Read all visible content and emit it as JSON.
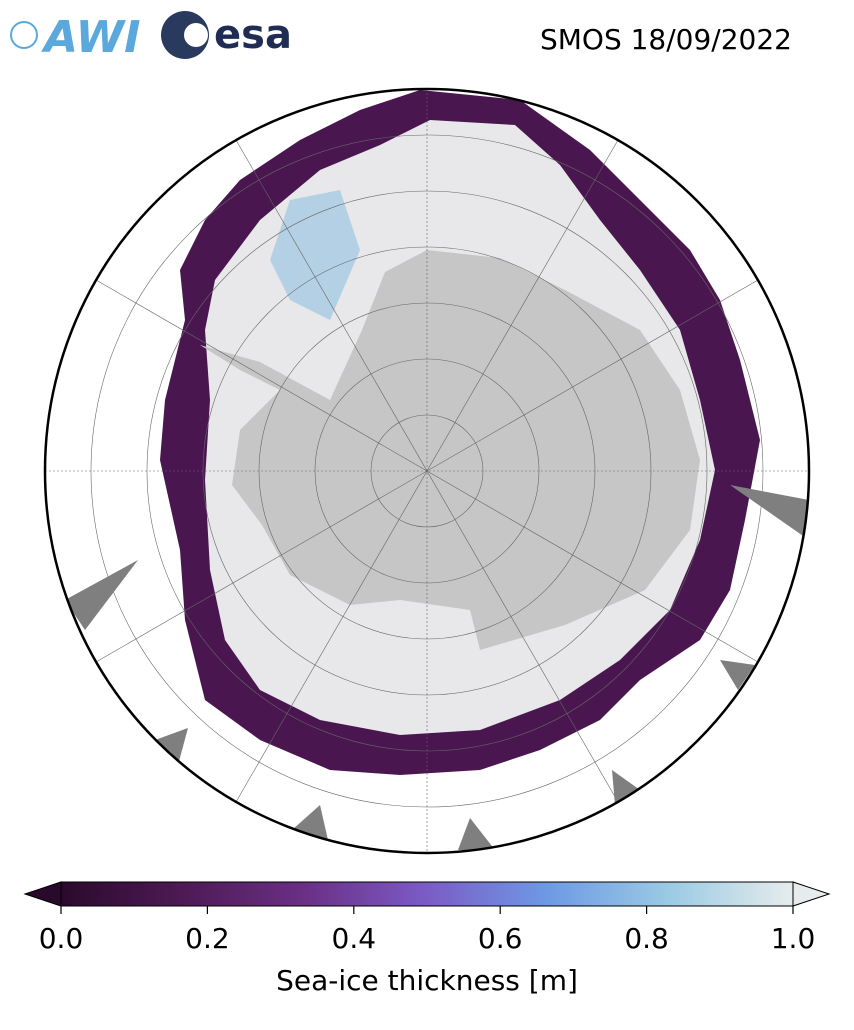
{
  "header": {
    "logos": [
      "AWI",
      "esa"
    ],
    "title": "SMOS 18/09/2022"
  },
  "colorbar": {
    "label": "Sea-ice thickness [m]",
    "lim": [
      0,
      1
    ],
    "ticks": [
      {
        "value": 0,
        "label": "0.0"
      },
      {
        "value": 0.2,
        "label": "0.2"
      },
      {
        "value": 0.4,
        "label": "0.4"
      },
      {
        "value": 0.6,
        "label": "0.6"
      },
      {
        "value": 0.8,
        "label": "0.8"
      },
      {
        "value": 1,
        "label": "1.0"
      }
    ],
    "colors": [
      "#2a0a2c",
      "#4e1a55",
      "#6b2f86",
      "#7b5cc6",
      "#6e9ae4",
      "#9ccbe4",
      "#e6ecec"
    ]
  }
}
